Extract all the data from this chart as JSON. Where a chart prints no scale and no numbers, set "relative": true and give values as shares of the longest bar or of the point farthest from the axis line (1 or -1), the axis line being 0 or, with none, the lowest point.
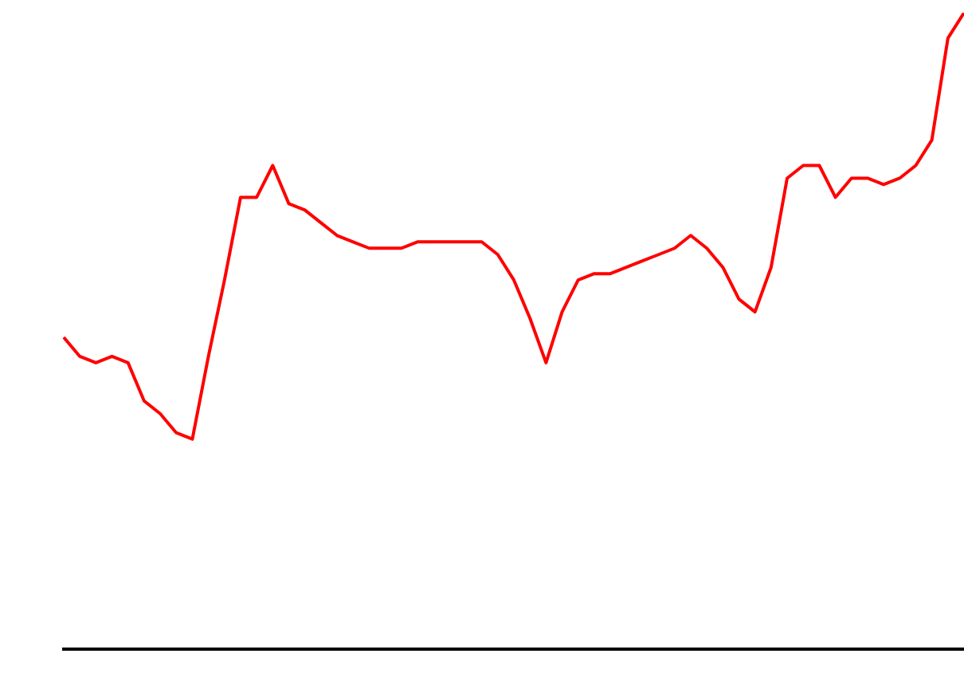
{
  "chart_data": {
    "type": "line",
    "relative": true,
    "marker": "none",
    "color": "#ff0000",
    "categories": [
      null,
      null,
      null,
      null,
      null,
      null,
      null,
      null,
      null,
      null,
      null,
      null,
      null,
      null,
      null,
      null,
      null,
      null,
      null,
      null,
      null,
      null,
      null,
      null,
      null,
      null,
      null,
      null,
      null,
      null,
      null,
      null,
      null,
      null,
      null,
      null,
      null,
      null,
      null,
      null,
      null,
      null,
      null,
      null,
      null,
      null,
      null,
      null,
      null,
      null,
      null,
      null,
      null,
      null,
      null,
      null,
      null
    ],
    "values": [
      0.49,
      0.46,
      0.45,
      0.46,
      0.45,
      0.39,
      0.37,
      0.34,
      0.33,
      0.46,
      0.58,
      0.71,
      0.71,
      0.76,
      0.7,
      0.69,
      0.67,
      0.65,
      0.64,
      0.63,
      0.63,
      0.63,
      0.64,
      0.64,
      0.64,
      0.64,
      0.64,
      0.62,
      0.58,
      0.52,
      0.45,
      0.53,
      0.58,
      0.59,
      0.59,
      0.6,
      0.61,
      0.62,
      0.63,
      0.65,
      0.63,
      0.6,
      0.55,
      0.53,
      0.6,
      0.74,
      0.76,
      0.76,
      0.71,
      0.74,
      0.74,
      0.73,
      0.74,
      0.76,
      0.8,
      0.96,
      1
    ]
  }
}
